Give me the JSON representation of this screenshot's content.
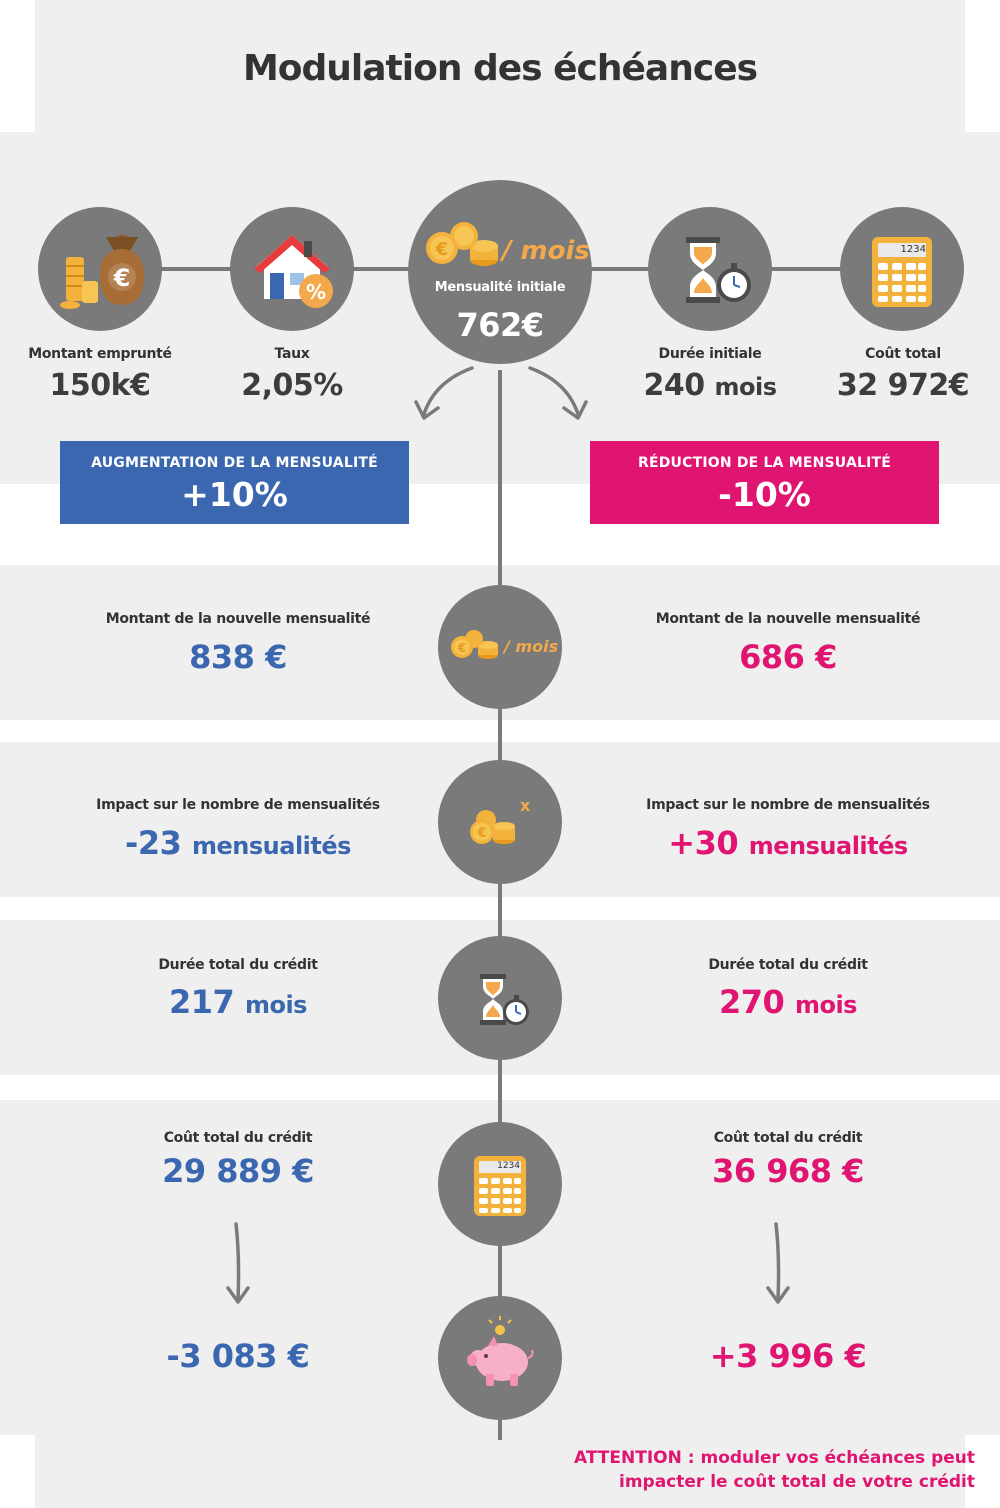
{
  "title": "Modulation des échéances",
  "top": {
    "montant": {
      "label": "Montant emprunté",
      "value": "150k€"
    },
    "taux": {
      "label": "Taux",
      "value": "2,05%"
    },
    "mensualite": {
      "unit": "/ mois",
      "label": "Mensualité initiale",
      "value": "762€"
    },
    "duree": {
      "label": "Durée initiale",
      "value": "240",
      "unit": "mois"
    },
    "cout": {
      "label": "Coût total",
      "value": "32 972€",
      "calc_display": "1234"
    }
  },
  "left_header": {
    "title": "AUGMENTATION DE LA MENSUALITÉ",
    "value": "+10%"
  },
  "right_header": {
    "title": "RÉDUCTION DE LA MENSUALITÉ",
    "value": "-10%"
  },
  "rows": {
    "mensualite": {
      "icon_unit": "/ mois",
      "left": {
        "label": "Montant de la nouvelle mensualité",
        "value": "838 €"
      },
      "right": {
        "label": "Montant de la nouvelle mensualité",
        "value": "686 €"
      }
    },
    "impact": {
      "icon_mark": "x",
      "left": {
        "label": "Impact sur le nombre de mensualités",
        "value": "-23",
        "unit": "mensualités"
      },
      "right": {
        "label": "Impact sur le nombre de mensualités",
        "value": "+30",
        "unit": "mensualités"
      }
    },
    "duree": {
      "left": {
        "label": "Durée total du crédit",
        "value": "217",
        "unit": "mois"
      },
      "right": {
        "label": "Durée total du crédit",
        "value": "270",
        "unit": "mois"
      }
    },
    "cout": {
      "calc_display": "1234",
      "left": {
        "label": "Coût total du crédit",
        "value": "29 889 €",
        "delta": "-3 083 €"
      },
      "right": {
        "label": "Coût total du crédit",
        "value": "36 968 €",
        "delta": "+3 996 €"
      }
    }
  },
  "warning": {
    "prefix": "ATTENTION :",
    "line1": "moduler vos échéances peut",
    "line2": "impacter le coût total de votre crédit"
  },
  "colors": {
    "blue": "#3a67b0",
    "pink": "#e01571",
    "grey": "#7a7a7a",
    "panel": "#efefef",
    "coin": "#f3a94b"
  }
}
